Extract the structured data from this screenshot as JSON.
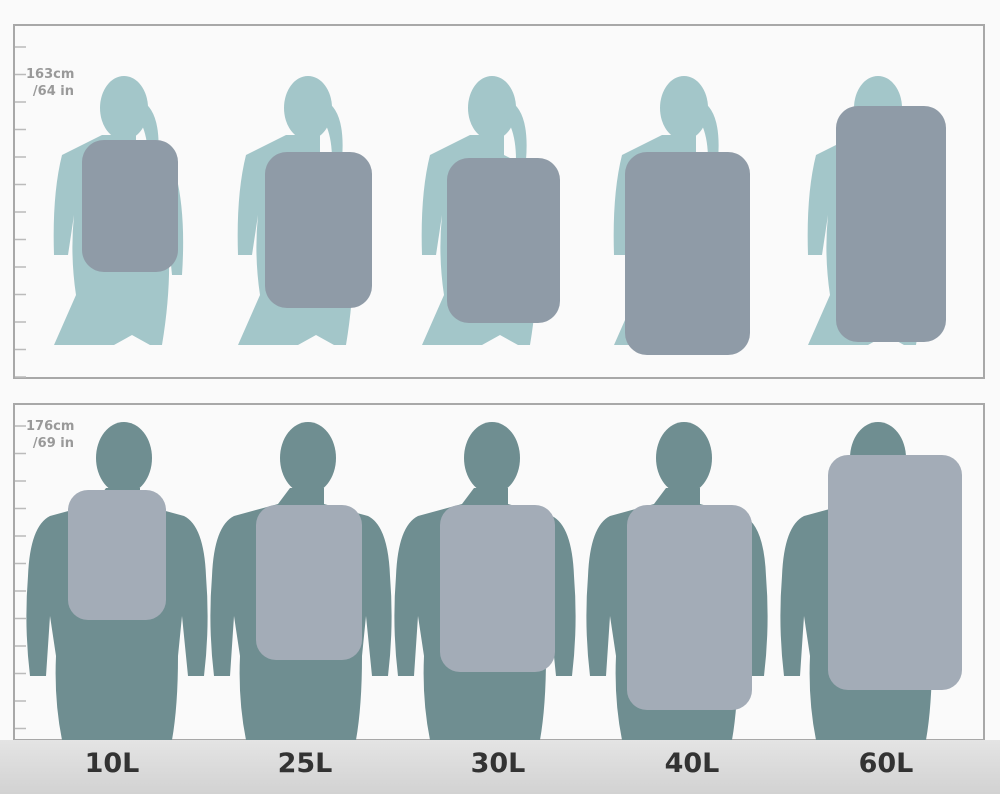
{
  "panels": [
    {
      "figure": "woman",
      "height_cm": "163cm",
      "height_in": "/64 in",
      "body_color": "#a3c6c9",
      "pack_color": "#8f9ba7"
    },
    {
      "figure": "man",
      "height_cm": "176cm",
      "height_in": "/69 in",
      "body_color": "#6f8e91",
      "pack_color": "#a3acb7"
    }
  ],
  "sizes": [
    "10L",
    "25L",
    "30L",
    "40L",
    "60L"
  ],
  "colors": {
    "frame": "#a8a8a8",
    "label_text": "#333333",
    "height_text": "#999999"
  }
}
